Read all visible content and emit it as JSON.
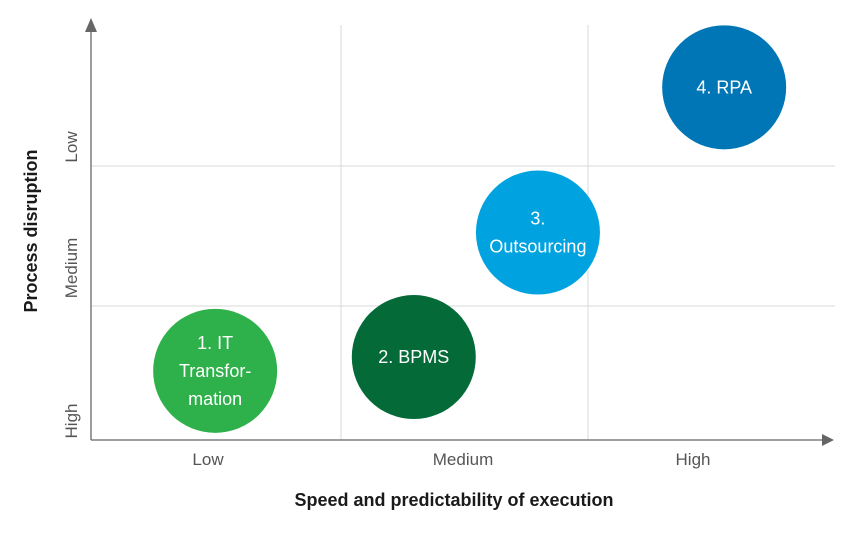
{
  "chart_data": {
    "type": "scatter",
    "xlabel": "Speed and predictability of execution",
    "ylabel": "Process disruption",
    "x_categories": [
      "Low",
      "Medium",
      "High"
    ],
    "y_categories": [
      "High",
      "Medium",
      "Low"
    ],
    "grid": true,
    "points": [
      {
        "label_lines": [
          "1. IT",
          "Transfor-",
          "mation"
        ],
        "x": 0.5,
        "y": 0.5,
        "color": "#2eb04a"
      },
      {
        "label_lines": [
          "2. BPMS"
        ],
        "x": 1.3,
        "y": 0.6,
        "color": "#046a38"
      },
      {
        "label_lines": [
          "3.",
          "Outsourcing"
        ],
        "x": 1.8,
        "y": 1.5,
        "color": "#00a3e0"
      },
      {
        "label_lines": [
          "4. RPA"
        ],
        "x": 2.55,
        "y": 2.55,
        "color": "#0076b6"
      }
    ]
  }
}
